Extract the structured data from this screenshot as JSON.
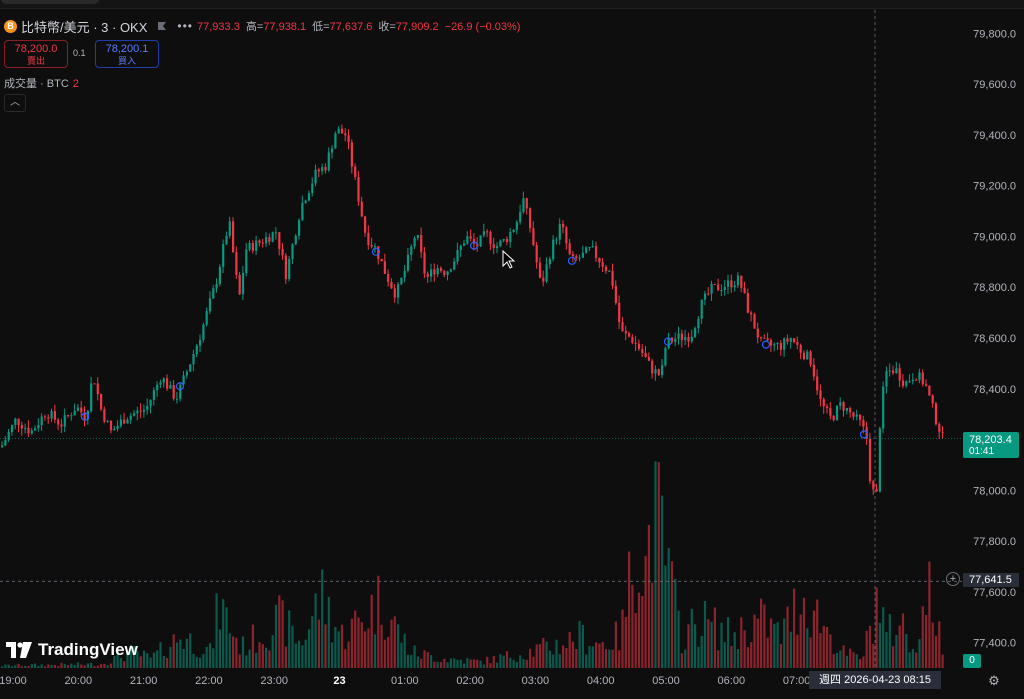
{
  "header": {
    "symbol": "比特幣/美元 · 3 · OKX",
    "coin_glyph": "B",
    "more_glyph": "•••",
    "ohlc": {
      "open_value": "77,933.3",
      "high_label": "高=",
      "high_value": "77,938.1",
      "low_label": "低=",
      "low_value": "77,637.6",
      "close_label": "收=",
      "close_value": "77,909.2",
      "change": "−26.9 (−0.03%)"
    }
  },
  "trade": {
    "sell_price": "78,200.0",
    "sell_label": "賣出",
    "spread": "0.1",
    "buy_price": "78,200.1",
    "buy_label": "買入"
  },
  "volume_indicator": {
    "label": "成交量 · BTC",
    "count": "2",
    "collapse_glyph": "︿"
  },
  "price_badge": {
    "price": "78,203.4",
    "countdown": "01:41"
  },
  "crosshair": {
    "price": "77,641.5",
    "plus_glyph": "+",
    "time": "週四  2026-04-23   08:15"
  },
  "volume_badge": "0",
  "branding": {
    "logo_text": "TradingView"
  },
  "settings_glyph": "⚙",
  "colors": {
    "up": "#089981",
    "down": "#f23645",
    "background": "#0e0e0e",
    "axis_text": "#b2b5be"
  },
  "chart_data": {
    "type": "candlestick",
    "x_tick_labels": [
      "19:00",
      "20:00",
      "21:00",
      "22:00",
      "23:00",
      "23",
      "01:00",
      "02:00",
      "03:00",
      "04:00",
      "05:00",
      "06:00",
      "07:00"
    ],
    "y_tick_labels": [
      "79,800.0",
      "79,600.0",
      "79,400.0",
      "79,200.0",
      "79,000.0",
      "78,800.0",
      "78,600.0",
      "78,400.0",
      "78,200.0",
      "78,000.0",
      "77,800.0",
      "77,600.0",
      "77,400.0"
    ],
    "ylim": [
      77300,
      79900
    ],
    "path": [
      [
        0,
        78170
      ],
      [
        15,
        78280
      ],
      [
        30,
        78230
      ],
      [
        45,
        78310
      ],
      [
        60,
        78260
      ],
      [
        75,
        78330
      ],
      [
        85,
        78290
      ],
      [
        92,
        78460
      ],
      [
        100,
        78320
      ],
      [
        110,
        78230
      ],
      [
        125,
        78290
      ],
      [
        145,
        78320
      ],
      [
        160,
        78450
      ],
      [
        175,
        78360
      ],
      [
        185,
        78460
      ],
      [
        200,
        78620
      ],
      [
        215,
        78820
      ],
      [
        228,
        79060
      ],
      [
        238,
        78750
      ],
      [
        245,
        78950
      ],
      [
        260,
        78980
      ],
      [
        275,
        79020
      ],
      [
        285,
        78850
      ],
      [
        300,
        79120
      ],
      [
        315,
        79250
      ],
      [
        325,
        79280
      ],
      [
        335,
        79420
      ],
      [
        345,
        79400
      ],
      [
        355,
        79200
      ],
      [
        365,
        79000
      ],
      [
        375,
        78950
      ],
      [
        385,
        78850
      ],
      [
        395,
        78770
      ],
      [
        405,
        78880
      ],
      [
        415,
        79020
      ],
      [
        425,
        78830
      ],
      [
        435,
        78880
      ],
      [
        445,
        78860
      ],
      [
        455,
        78920
      ],
      [
        465,
        79000
      ],
      [
        475,
        78960
      ],
      [
        485,
        79010
      ],
      [
        495,
        78960
      ],
      [
        505,
        78990
      ],
      [
        515,
        79050
      ],
      [
        522,
        79150
      ],
      [
        530,
        79020
      ],
      [
        540,
        78800
      ],
      [
        550,
        78950
      ],
      [
        560,
        79050
      ],
      [
        570,
        78900
      ],
      [
        580,
        78920
      ],
      [
        590,
        78950
      ],
      [
        600,
        78900
      ],
      [
        610,
        78850
      ],
      [
        620,
        78620
      ],
      [
        630,
        78600
      ],
      [
        640,
        78550
      ],
      [
        650,
        78480
      ],
      [
        660,
        78450
      ],
      [
        665,
        78580
      ],
      [
        675,
        78600
      ],
      [
        690,
        78610
      ],
      [
        700,
        78730
      ],
      [
        710,
        78790
      ],
      [
        725,
        78810
      ],
      [
        738,
        78830
      ],
      [
        748,
        78700
      ],
      [
        760,
        78580
      ],
      [
        770,
        78570
      ],
      [
        780,
        78570
      ],
      [
        790,
        78600
      ],
      [
        800,
        78550
      ],
      [
        810,
        78510
      ],
      [
        820,
        78340
      ],
      [
        830,
        78280
      ],
      [
        840,
        78340
      ],
      [
        850,
        78300
      ],
      [
        860,
        78260
      ],
      [
        866,
        78200
      ],
      [
        870,
        78000
      ],
      [
        876,
        77980
      ],
      [
        878,
        78230
      ],
      [
        884,
        78460
      ],
      [
        894,
        78480
      ],
      [
        904,
        78420
      ],
      [
        914,
        78460
      ],
      [
        924,
        78420
      ],
      [
        934,
        78290
      ],
      [
        942,
        78203
      ]
    ],
    "volume_profile": [
      [
        0,
        3
      ],
      [
        100,
        5
      ],
      [
        130,
        20
      ],
      [
        150,
        12
      ],
      [
        180,
        40
      ],
      [
        210,
        20
      ],
      [
        218,
        80
      ],
      [
        240,
        25
      ],
      [
        280,
        60
      ],
      [
        300,
        30
      ],
      [
        320,
        90
      ],
      [
        340,
        40
      ],
      [
        360,
        60
      ],
      [
        380,
        85
      ],
      [
        395,
        50
      ],
      [
        410,
        20
      ],
      [
        440,
        12
      ],
      [
        480,
        8
      ],
      [
        520,
        18
      ],
      [
        560,
        30
      ],
      [
        580,
        40
      ],
      [
        600,
        30
      ],
      [
        620,
        40
      ],
      [
        636,
        165
      ],
      [
        645,
        120
      ],
      [
        650,
        190
      ],
      [
        660,
        170
      ],
      [
        670,
        100
      ],
      [
        680,
        40
      ],
      [
        700,
        60
      ],
      [
        730,
        40
      ],
      [
        760,
        60
      ],
      [
        780,
        40
      ],
      [
        800,
        90
      ],
      [
        820,
        60
      ],
      [
        840,
        20
      ],
      [
        860,
        12
      ],
      [
        868,
        40
      ],
      [
        876,
        90
      ],
      [
        886,
        40
      ],
      [
        900,
        60
      ],
      [
        910,
        20
      ],
      [
        930,
        100
      ],
      [
        942,
        10
      ]
    ],
    "markers_x": [
      85,
      180,
      376,
      474,
      572,
      668,
      766,
      864
    ],
    "last_price": 78203.4,
    "crosshair_price": 77641.5
  }
}
